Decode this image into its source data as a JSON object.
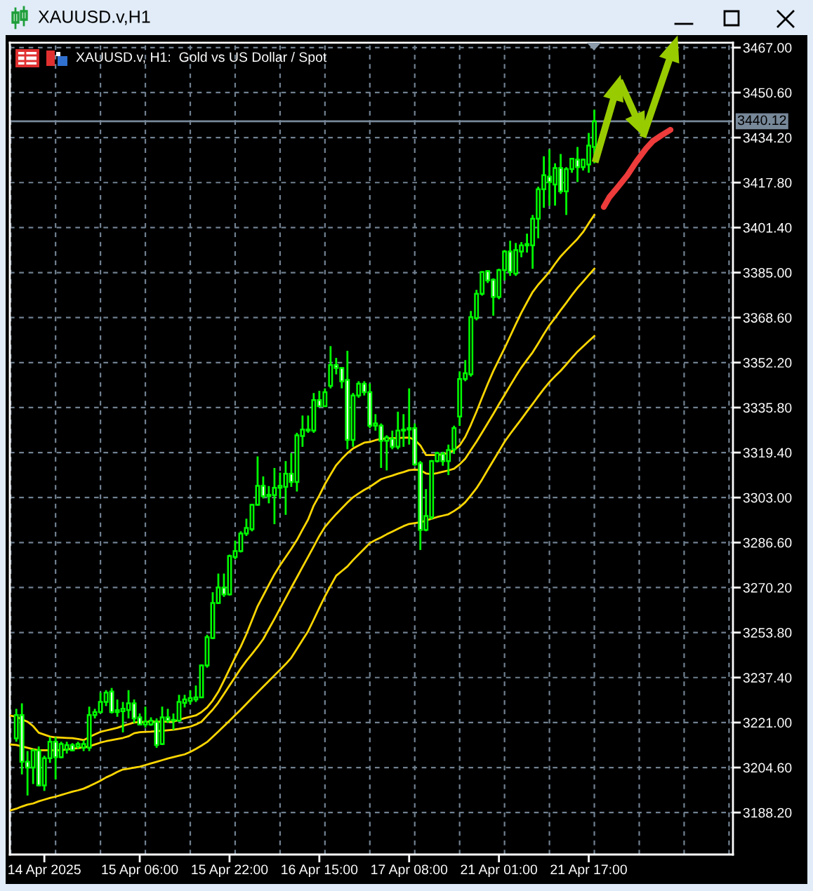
{
  "chart_data": {
    "type": "candlestick",
    "title": "XAUUSD.v,H1",
    "subtitle": "XAUUSD.v, H1:  Gold vs US Dollar / Spot",
    "color": "#00ff00",
    "categories": [
      null,
      null,
      null,
      null,
      null,
      null,
      "14 Apr 2025",
      null,
      null,
      null,
      null,
      null,
      null,
      null,
      null,
      null,
      null,
      null,
      null,
      null,
      null,
      null,
      null,
      "15 Apr 06:00",
      null,
      null,
      null,
      null,
      null,
      null,
      null,
      null,
      null,
      null,
      null,
      null,
      null,
      null,
      null,
      "15 Apr 22:00",
      null,
      null,
      null,
      null,
      null,
      null,
      null,
      null,
      null,
      null,
      null,
      null,
      null,
      null,
      null,
      "16 Apr 15:00",
      null,
      null,
      null,
      null,
      null,
      null,
      null,
      null,
      null,
      null,
      null,
      null,
      null,
      null,
      null,
      "17 Apr 08:00",
      null,
      null,
      null,
      null,
      null,
      null,
      null,
      null,
      null,
      null,
      null,
      null,
      null,
      null,
      null,
      "21 Apr 01:00",
      null,
      null,
      null,
      null,
      null,
      null,
      null,
      null,
      null,
      null,
      null,
      null,
      null,
      null,
      null,
      "21 Apr 17:00",
      null,
      null,
      null,
      null,
      null,
      null,
      null,
      null,
      null,
      null,
      null,
      null,
      null,
      null,
      null,
      null,
      null,
      null,
      null,
      null,
      null,
      null,
      null,
      null,
      null
    ],
    "ohlc": [
      null,
      [
        3215.2,
        3226.0,
        3214.0,
        3223.7
      ],
      [
        3223.7,
        3228.0,
        3202.1,
        3206.7
      ],
      [
        3206.7,
        3210.6,
        3194.4,
        3204.6
      ],
      [
        3204.6,
        3211.4,
        3198.6,
        3210.9
      ],
      [
        3210.9,
        3212.3,
        3197.8,
        3198.1
      ],
      [
        3198.1,
        3208.9,
        3196.1,
        3208.0
      ],
      [
        3208.0,
        3215.7,
        3206.3,
        3214.0
      ],
      [
        3214.0,
        3215.7,
        3200.3,
        3208.4
      ],
      [
        3208.4,
        3214.0,
        3208.0,
        3213.2
      ],
      [
        3211.1,
        3214.0,
        3209.7,
        3212.8
      ],
      [
        3212.8,
        3213.5,
        3210.6,
        3210.9
      ],
      [
        3212.3,
        3214.0,
        3211.4,
        3213.2
      ],
      [
        3211.8,
        3214.5,
        3210.6,
        3213.2
      ],
      [
        3211.8,
        3226.8,
        3210.6,
        3223.7
      ],
      [
        3223.7,
        3226.0,
        3222.5,
        3224.8
      ],
      [
        3224.8,
        3231.9,
        3224.3,
        3228.5
      ],
      [
        3228.5,
        3232.8,
        3227.0,
        3231.9
      ],
      [
        3232.3,
        3233.6,
        3224.3,
        3224.8
      ],
      [
        3224.8,
        3229.4,
        3223.1,
        3225.5
      ],
      [
        3225.1,
        3228.5,
        3217.4,
        3226.0
      ],
      [
        3225.6,
        3232.8,
        3222.5,
        3228.0
      ],
      [
        3228.0,
        3229.4,
        3220.8,
        3222.5
      ],
      [
        3222.9,
        3224.3,
        3220.0,
        3220.3
      ],
      [
        3220.3,
        3226.8,
        3219.1,
        3221.3
      ],
      [
        3220.3,
        3222.9,
        3219.8,
        3221.7
      ],
      [
        3221.3,
        3222.5,
        3211.8,
        3212.8
      ],
      [
        3213.2,
        3226.8,
        3212.8,
        3222.9
      ],
      [
        3222.9,
        3226.0,
        3220.8,
        3221.7
      ],
      [
        3221.7,
        3224.3,
        3218.3,
        3222.0
      ],
      [
        3221.7,
        3231.1,
        3221.3,
        3228.5
      ],
      [
        3228.2,
        3231.1,
        3226.5,
        3229.4
      ],
      [
        3228.9,
        3232.8,
        3227.7,
        3229.9
      ],
      [
        3229.4,
        3234.5,
        3228.5,
        3230.2
      ],
      [
        3230.2,
        3242.2,
        3229.9,
        3241.8
      ],
      [
        3241.8,
        3253.0,
        3241.0,
        3252.1
      ],
      [
        3251.8,
        3268.5,
        3251.4,
        3264.6
      ],
      [
        3264.6,
        3275.3,
        3264.2,
        3270.2
      ],
      [
        3270.2,
        3275.3,
        3266.8,
        3267.7
      ],
      [
        3267.7,
        3282.2,
        3267.3,
        3281.7
      ],
      [
        3281.3,
        3287.3,
        3280.5,
        3283.5
      ],
      [
        3283.5,
        3290.7,
        3283.0,
        3289.9
      ],
      [
        3289.9,
        3295.3,
        3289.0,
        3291.9
      ],
      [
        3291.5,
        3300.6,
        3290.7,
        3300.4
      ],
      [
        3300.4,
        3318.0,
        3300.1,
        3307.3
      ],
      [
        3307.3,
        3310.7,
        3302.7,
        3303.5
      ],
      [
        3303.5,
        3307.2,
        3300.9,
        3304.0
      ],
      [
        3303.9,
        3313.8,
        3293.3,
        3306.6
      ],
      [
        3306.6,
        3312.1,
        3302.7,
        3307.3
      ],
      [
        3306.9,
        3316.3,
        3296.7,
        3311.7
      ],
      [
        3311.7,
        3319.2,
        3306.9,
        3308.7
      ],
      [
        3308.7,
        3326.6,
        3305.2,
        3325.7
      ],
      [
        3325.4,
        3332.9,
        3321.5,
        3327.8
      ],
      [
        3327.8,
        3332.9,
        3326.6,
        3327.4
      ],
      [
        3327.4,
        3341.1,
        3326.6,
        3338.5
      ],
      [
        3338.5,
        3341.9,
        3336.0,
        3336.3
      ],
      [
        3336.3,
        3342.8,
        3336.0,
        3341.4
      ],
      [
        3343.7,
        3358.2,
        3342.8,
        3351.3
      ],
      [
        3351.3,
        3353.9,
        3347.9,
        3350.2
      ],
      [
        3350.2,
        3350.5,
        3342.8,
        3345.4
      ],
      [
        3345.9,
        3356.5,
        3320.6,
        3324.0
      ],
      [
        3324.0,
        3341.1,
        3321.5,
        3340.2
      ],
      [
        3340.2,
        3345.4,
        3339.4,
        3344.5
      ],
      [
        3344.5,
        3345.4,
        3340.2,
        3341.4
      ],
      [
        3341.4,
        3344.5,
        3328.3,
        3329.2
      ],
      [
        3329.2,
        3333.4,
        3327.4,
        3330.0
      ],
      [
        3329.2,
        3330.0,
        3313.8,
        3323.7
      ],
      [
        3323.7,
        3325.7,
        3312.9,
        3324.9
      ],
      [
        3324.4,
        3327.4,
        3320.6,
        3321.5
      ],
      [
        3321.5,
        3334.3,
        3320.6,
        3327.4
      ],
      [
        3327.4,
        3333.4,
        3321.5,
        3327.8
      ],
      [
        3327.8,
        3342.8,
        3322.3,
        3328.3
      ],
      [
        3328.3,
        3330.0,
        3314.6,
        3315.1
      ],
      [
        3315.5,
        3316.3,
        3283.9,
        3291.2
      ],
      [
        3291.2,
        3306.1,
        3290.7,
        3296.3
      ],
      [
        3295.8,
        3316.7,
        3295.0,
        3316.3
      ],
      [
        3316.3,
        3319.7,
        3315.8,
        3319.2
      ],
      [
        3318.9,
        3319.7,
        3314.6,
        3316.3
      ],
      [
        3316.3,
        3322.3,
        3311.2,
        3320.3
      ],
      [
        3320.6,
        3329.2,
        3318.9,
        3328.3
      ],
      [
        3332.5,
        3349.0,
        3329.1,
        3346.2
      ],
      [
        3346.2,
        3353.1,
        3345.4,
        3348.3
      ],
      [
        3347.9,
        3371.0,
        3347.1,
        3368.8
      ],
      [
        3368.4,
        3378.7,
        3367.6,
        3377.3
      ],
      [
        3377.3,
        3385.5,
        3376.6,
        3385.2
      ],
      [
        3385.5,
        3385.9,
        3381.2,
        3382.1
      ],
      [
        3382.4,
        3382.9,
        3369.3,
        3376.1
      ],
      [
        3376.1,
        3386.4,
        3375.3,
        3385.9
      ],
      [
        3385.9,
        3393.2,
        3382.1,
        3392.7
      ],
      [
        3392.7,
        3396.6,
        3383.8,
        3385.2
      ],
      [
        3384.6,
        3395.8,
        3383.8,
        3393.2
      ],
      [
        3392.7,
        3396.1,
        3390.6,
        3394.9
      ],
      [
        3394.9,
        3399.2,
        3392.3,
        3395.4
      ],
      [
        3394.9,
        3406.0,
        3386.4,
        3404.6
      ],
      [
        3404.6,
        3416.3,
        3397.5,
        3415.4
      ],
      [
        3415.4,
        3427.4,
        3408.6,
        3420.5
      ],
      [
        3420.0,
        3429.9,
        3409.4,
        3418.0
      ],
      [
        3417.1,
        3424.8,
        3409.4,
        3423.1
      ],
      [
        3423.1,
        3428.2,
        3413.7,
        3414.6
      ],
      [
        3414.6,
        3423.4,
        3406.0,
        3422.7
      ],
      [
        3422.7,
        3426.8,
        3421.4,
        3426.5
      ],
      [
        3426.2,
        3430.8,
        3418.0,
        3423.4
      ],
      [
        3423.4,
        3426.5,
        3422.2,
        3426.2
      ],
      [
        3424.4,
        3435.9,
        3421.4,
        3431.3
      ],
      [
        3430.8,
        3444.4,
        3424.8,
        3440.12
      ],
      null,
      null,
      null,
      null,
      null,
      null,
      null,
      null,
      null,
      null,
      null,
      null,
      null,
      null,
      null,
      null,
      null,
      null,
      null,
      null,
      null,
      null,
      null,
      null
    ],
    "series": [
      {
        "type": "line",
        "color": "#ffd700",
        "values": [
          3223.5,
          3223.1,
          3222.2,
          3221.3,
          3219.7,
          3217.3,
          3216.6,
          3215.9,
          3215.6,
          3215.5,
          3215.4,
          3215.3,
          3215.0,
          3214.6,
          3215.7,
          3216.7,
          3217.6,
          3218.1,
          3218.6,
          3219.1,
          3219.8,
          3220.4,
          3221.0,
          3221.2,
          3221.2,
          3221.3,
          3221.3,
          3221.3,
          3221.3,
          3221.3,
          3222.0,
          3222.6,
          3223.1,
          3223.6,
          3224.8,
          3226.5,
          3229.0,
          3232.2,
          3236.3,
          3240.5,
          3244.7,
          3248.7,
          3253.2,
          3258.3,
          3263.4,
          3267.3,
          3271.2,
          3275.0,
          3278.3,
          3281.3,
          3284.3,
          3287.5,
          3291.3,
          3295.0,
          3300.1,
          3303.8,
          3307.9,
          3311.4,
          3314.8,
          3317.1,
          3319.2,
          3320.9,
          3322.0,
          3323.0,
          3323.3,
          3323.9,
          3324.4,
          3324.5,
          3324.6,
          3324.7,
          3324.8,
          3324.9,
          3324.0,
          3322.0,
          3318.5,
          3318.5,
          3318.5,
          3318.8,
          3319.3,
          3320.3,
          3322.0,
          3325.1,
          3329.5,
          3334.3,
          3339.4,
          3344.4,
          3349.1,
          3353.3,
          3357.4,
          3361.8,
          3366.2,
          3370.4,
          3374.2,
          3377.9,
          3380.6,
          3382.9,
          3385.3,
          3388.2,
          3390.9,
          3393.1,
          3395.2,
          3397.3,
          3399.8,
          3403.0,
          3406.0,
          null,
          null,
          null,
          null,
          null,
          null,
          null,
          null,
          null,
          null,
          null,
          null,
          null,
          null,
          null,
          null,
          null,
          null,
          null,
          null,
          null,
          null,
          null,
          null
        ]
      },
      {
        "type": "line",
        "color": "#ffd700",
        "values": [
          3213.0,
          3212.8,
          3212.3,
          3211.8,
          3211.3,
          3210.9,
          3210.9,
          3210.9,
          3210.9,
          3210.9,
          3211.2,
          3211.5,
          3211.7,
          3212.0,
          3212.3,
          3213.0,
          3213.7,
          3214.2,
          3214.6,
          3215.0,
          3215.4,
          3216.0,
          3217.1,
          3217.5,
          3217.6,
          3217.7,
          3217.9,
          3218.0,
          3218.2,
          3218.4,
          3218.7,
          3219.1,
          3219.5,
          3220.3,
          3221.3,
          3223.5,
          3225.7,
          3228.3,
          3231.4,
          3234.5,
          3237.6,
          3240.7,
          3243.5,
          3246.0,
          3248.6,
          3251.4,
          3255.1,
          3258.8,
          3262.6,
          3266.4,
          3270.2,
          3273.9,
          3277.7,
          3281.4,
          3285.2,
          3289.0,
          3292.3,
          3294.7,
          3297.0,
          3299.1,
          3301.2,
          3303.1,
          3304.5,
          3305.8,
          3306.9,
          3308.3,
          3309.7,
          3310.4,
          3311.0,
          3311.7,
          3312.3,
          3313.0,
          3313.2,
          3313.0,
          3311.8,
          3311.5,
          3311.9,
          3312.4,
          3312.9,
          3313.5,
          3315.1,
          3317.2,
          3320.3,
          3323.4,
          3326.7,
          3330.1,
          3333.5,
          3337.0,
          3340.4,
          3343.8,
          3347.2,
          3350.4,
          3353.2,
          3355.9,
          3359.2,
          3362.6,
          3365.8,
          3368.5,
          3371.3,
          3374.0,
          3376.8,
          3379.4,
          3381.7,
          3384.1,
          3386.4,
          null,
          null,
          null,
          null,
          null,
          null,
          null,
          null,
          null,
          null,
          null,
          null,
          null,
          null,
          null,
          null,
          null,
          null,
          null,
          null,
          null,
          null,
          null,
          null
        ]
      },
      {
        "type": "line",
        "color": "#ffd700",
        "values": [
          3189.0,
          3189.6,
          3190.4,
          3191.1,
          3191.5,
          3192.3,
          3192.9,
          3193.5,
          3194.0,
          3194.6,
          3195.2,
          3195.8,
          3196.3,
          3196.9,
          3197.8,
          3198.8,
          3199.8,
          3201.0,
          3201.9,
          3203.0,
          3203.9,
          3204.2,
          3204.6,
          3204.9,
          3205.5,
          3206.1,
          3206.7,
          3207.3,
          3207.9,
          3208.4,
          3208.9,
          3209.4,
          3210.3,
          3211.4,
          3212.6,
          3213.9,
          3215.8,
          3217.7,
          3219.7,
          3221.7,
          3223.7,
          3225.7,
          3227.8,
          3229.9,
          3232.0,
          3234.1,
          3236.1,
          3238.2,
          3240.2,
          3242.3,
          3244.6,
          3247.8,
          3251.1,
          3254.3,
          3258.5,
          3262.8,
          3267.0,
          3270.8,
          3274.5,
          3276.2,
          3277.9,
          3280.2,
          3282.3,
          3284.3,
          3286.4,
          3287.5,
          3288.5,
          3289.6,
          3290.6,
          3291.6,
          3292.6,
          3293.4,
          3293.7,
          3294.0,
          3294.6,
          3295.3,
          3295.9,
          3296.4,
          3296.9,
          3298.1,
          3299.5,
          3301.3,
          3303.8,
          3306.4,
          3309.6,
          3313.1,
          3316.5,
          3319.9,
          3323.3,
          3326.2,
          3328.9,
          3331.6,
          3334.4,
          3337.1,
          3339.9,
          3342.6,
          3345.1,
          3347.2,
          3349.2,
          3351.5,
          3353.9,
          3356.2,
          3358.1,
          3360.0,
          3361.9,
          null,
          null,
          null,
          null,
          null,
          null,
          null,
          null,
          null,
          null,
          null,
          null,
          null,
          null,
          null,
          null,
          null,
          null,
          null,
          null,
          null,
          null,
          null,
          null
        ]
      }
    ],
    "ylim": [
      3172.9,
      3468.8
    ],
    "yticks": [
      {
        "value": 3188.2,
        "label": "3188.20"
      },
      {
        "value": 3204.6,
        "label": "3204.60"
      },
      {
        "value": 3221.0,
        "label": "3221.00"
      },
      {
        "value": 3237.4,
        "label": "3237.40"
      },
      {
        "value": 3253.8,
        "label": "3253.80"
      },
      {
        "value": 3270.2,
        "label": "3270.20"
      },
      {
        "value": 3286.6,
        "label": "3286.60"
      },
      {
        "value": 3303.0,
        "label": "3303.00"
      },
      {
        "value": 3319.4,
        "label": "3319.40"
      },
      {
        "value": 3335.8,
        "label": "3335.80"
      },
      {
        "value": 3352.2,
        "label": "3352.20"
      },
      {
        "value": 3368.6,
        "label": "3368.60"
      },
      {
        "value": 3385.0,
        "label": "3385.00"
      },
      {
        "value": 3401.4,
        "label": "3401.40"
      },
      {
        "value": 3417.8,
        "label": "3417.80"
      },
      {
        "value": 3434.2,
        "label": "3434.20"
      },
      {
        "value": 3450.6,
        "label": "3450.60"
      },
      {
        "value": 3467.0,
        "label": "3467.00"
      }
    ],
    "ref_lines": [
      {
        "axis": "y",
        "value": 3440.12,
        "label": "3440.12",
        "color": "#778899"
      }
    ],
    "grid": true
  }
}
